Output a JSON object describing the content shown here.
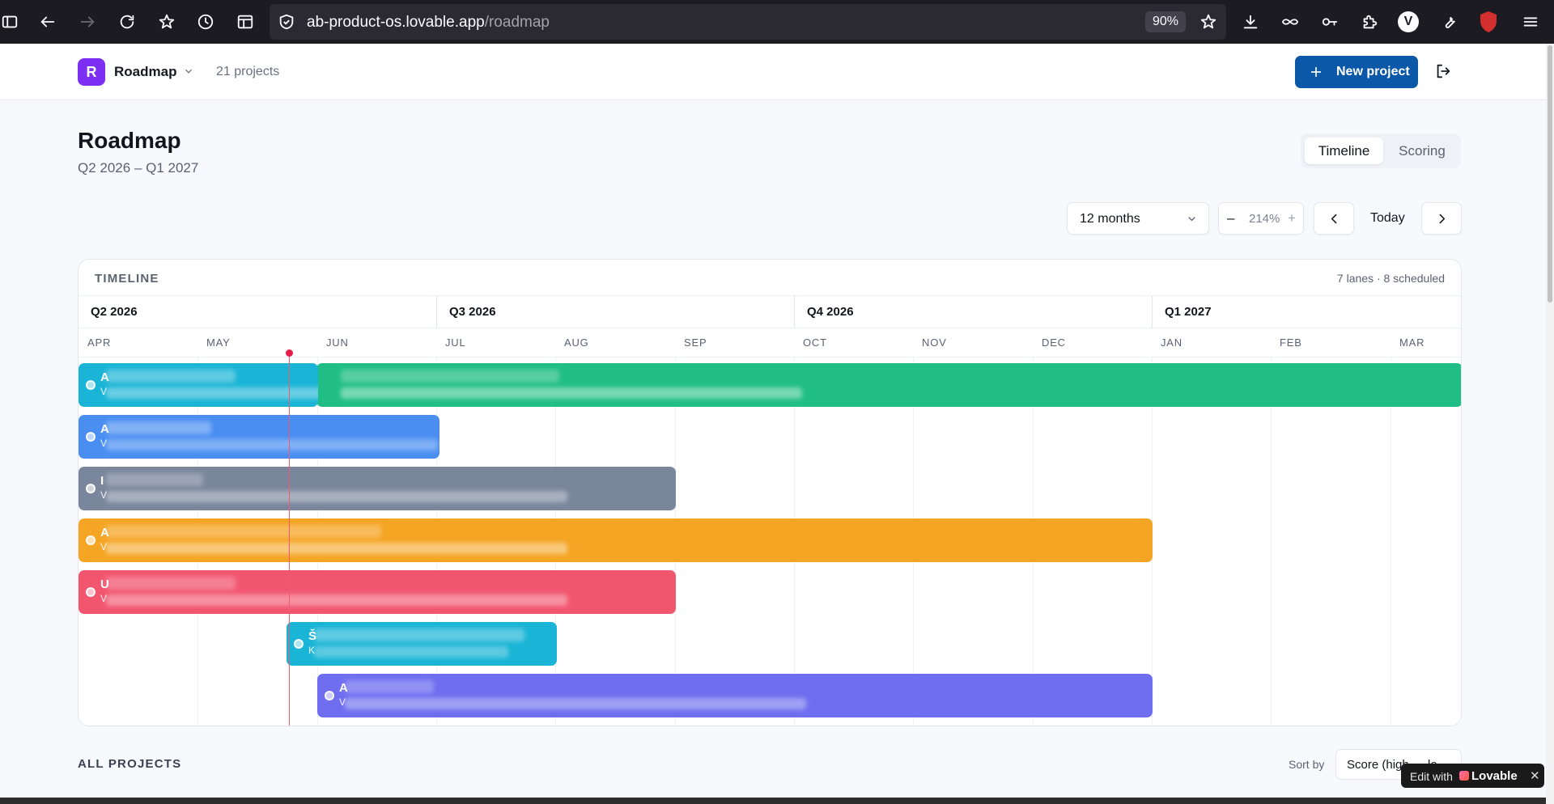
{
  "browser": {
    "url_host": "ab-product-os.lovable.app",
    "url_path": "/roadmap",
    "zoom": "90%",
    "profile_initial": "V"
  },
  "header": {
    "logo_letter": "R",
    "workspace": "Roadmap",
    "project_count": "21 projects",
    "new_project_label": "New project"
  },
  "page": {
    "title": "Roadmap",
    "subtitle": "Q2 2026 – Q1 2027",
    "views": [
      "Timeline",
      "Scoring"
    ],
    "active_view": "Timeline"
  },
  "controls": {
    "range": "12 months",
    "zoom_minus": "–",
    "zoom_value": "214%",
    "zoom_plus": "+",
    "today_label": "Today"
  },
  "timeline": {
    "label": "TIMELINE",
    "meta": "7 lanes · 8 scheduled",
    "quarters": [
      "Q2 2026",
      "Q3 2026",
      "Q4 2026",
      "Q1 2027"
    ],
    "months": [
      "APR",
      "MAY",
      "JUN",
      "JUL",
      "AUG",
      "SEP",
      "OCT",
      "NOV",
      "DEC",
      "JAN",
      "FEB",
      "MAR"
    ],
    "bars": [
      {
        "initial": "A",
        "owner_initial": "V",
        "color": "#1ab5d6"
      },
      {
        "initial": "",
        "owner_initial": "",
        "color": "#20be86"
      },
      {
        "initial": "A",
        "owner_initial": "V",
        "color": "#4a8ef2"
      },
      {
        "initial": "I",
        "owner_initial": "V",
        "color": "#7a869c"
      },
      {
        "initial": "A",
        "owner_initial": "V",
        "color": "#f5a524"
      },
      {
        "initial": "U",
        "owner_initial": "V",
        "color": "#f2566f"
      },
      {
        "initial": "Š",
        "owner_initial": "K",
        "color": "#1ab5d6"
      },
      {
        "initial": "A",
        "owner_initial": "V",
        "color": "#6f6ef0"
      }
    ]
  },
  "projects": {
    "section_label": "ALL PROJECTS",
    "sort_label": "Sort by",
    "sort_value": "Score (high → lo"
  },
  "badge": {
    "edit_label": "Edit with",
    "brand": "Lovable",
    "close": "✕"
  }
}
